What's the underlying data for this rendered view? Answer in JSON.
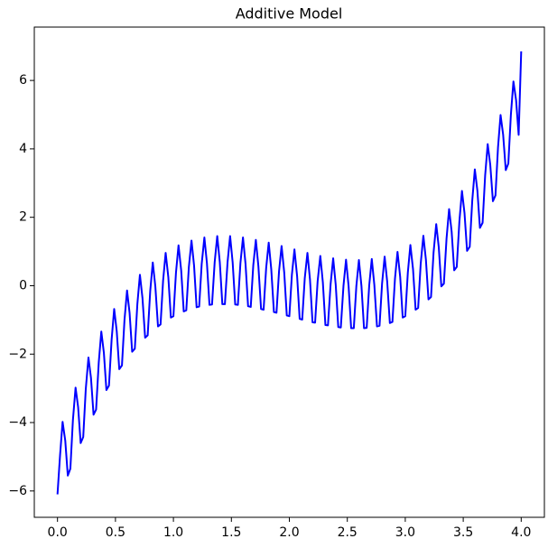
{
  "chart_data": {
    "type": "line",
    "title": "Additive Model",
    "color": "#0000ff",
    "x": [
      0,
      0.022,
      0.044,
      0.067,
      0.089,
      0.111,
      0.133,
      0.156,
      0.178,
      0.2,
      0.222,
      0.244,
      0.267,
      0.289,
      0.311,
      0.333,
      0.356,
      0.378,
      0.4,
      0.422,
      0.444,
      0.467,
      0.489,
      0.511,
      0.533,
      0.556,
      0.578,
      0.6,
      0.622,
      0.644,
      0.667,
      0.689,
      0.711,
      0.733,
      0.756,
      0.778,
      0.8,
      0.822,
      0.844,
      0.867,
      0.889,
      0.911,
      0.933,
      0.956,
      0.978,
      1.0,
      1.022,
      1.044,
      1.067,
      1.089,
      1.111,
      1.133,
      1.156,
      1.178,
      1.2,
      1.222,
      1.244,
      1.267,
      1.289,
      1.311,
      1.333,
      1.356,
      1.378,
      1.4,
      1.422,
      1.444,
      1.467,
      1.489,
      1.511,
      1.533,
      1.556,
      1.578,
      1.6,
      1.622,
      1.644,
      1.667,
      1.689,
      1.711,
      1.733,
      1.756,
      1.778,
      1.8,
      1.822,
      1.844,
      1.867,
      1.889,
      1.911,
      1.933,
      1.956,
      1.978,
      2.0,
      2.022,
      2.044,
      2.067,
      2.089,
      2.111,
      2.133,
      2.156,
      2.178,
      2.2,
      2.222,
      2.244,
      2.267,
      2.289,
      2.311,
      2.333,
      2.356,
      2.378,
      2.4,
      2.422,
      2.444,
      2.467,
      2.489,
      2.511,
      2.533,
      2.556,
      2.578,
      2.6,
      2.622,
      2.644,
      2.667,
      2.689,
      2.711,
      2.733,
      2.756,
      2.778,
      2.8,
      2.822,
      2.844,
      2.867,
      2.889,
      2.911,
      2.933,
      2.956,
      2.978,
      3.0,
      3.022,
      3.044,
      3.067,
      3.089,
      3.111,
      3.133,
      3.156,
      3.178,
      3.2,
      3.222,
      3.244,
      3.267,
      3.289,
      3.311,
      3.333,
      3.356,
      3.378,
      3.4,
      3.422,
      3.444,
      3.467,
      3.489,
      3.511,
      3.533,
      3.556,
      3.578,
      3.6,
      3.622,
      3.644,
      3.667,
      3.689,
      3.711,
      3.733,
      3.756,
      3.778,
      3.8,
      3.822,
      3.844,
      3.867,
      3.889,
      3.911,
      3.933,
      3.956,
      3.978,
      4.0
    ],
    "values": [
      -6.1,
      -4.96,
      -3.98,
      -4.53,
      -5.55,
      -5.35,
      -3.93,
      -2.98,
      -3.55,
      -4.6,
      -4.42,
      -3.02,
      -2.1,
      -2.7,
      -3.77,
      -3.62,
      -2.24,
      -1.34,
      -1.96,
      -3.05,
      -2.92,
      -1.57,
      -0.68,
      -1.33,
      -2.44,
      -2.33,
      -1.0,
      -0.14,
      -0.8,
      -1.93,
      -1.84,
      -0.53,
      0.32,
      -0.36,
      -1.52,
      -1.45,
      -0.15,
      0.68,
      -0.02,
      -1.19,
      -1.13,
      0.15,
      0.96,
      0.25,
      -0.93,
      -0.89,
      0.38,
      1.18,
      0.45,
      -0.75,
      -0.72,
      0.54,
      1.32,
      0.59,
      -0.63,
      -0.61,
      0.64,
      1.41,
      0.66,
      -0.56,
      -0.55,
      0.69,
      1.45,
      0.69,
      -0.54,
      -0.54,
      0.69,
      1.45,
      0.68,
      -0.55,
      -0.56,
      0.66,
      1.41,
      0.64,
      -0.6,
      -0.62,
      0.6,
      1.34,
      0.57,
      -0.68,
      -0.7,
      0.52,
      1.26,
      0.48,
      -0.77,
      -0.79,
      0.42,
      1.16,
      0.38,
      -0.87,
      -0.89,
      0.32,
      1.06,
      0.28,
      -0.97,
      -0.99,
      0.22,
      0.96,
      0.18,
      -1.07,
      -1.08,
      0.13,
      0.87,
      0.1,
      -1.15,
      -1.16,
      0.05,
      0.8,
      0.03,
      -1.21,
      -1.22,
      0.0,
      0.76,
      -0.01,
      -1.24,
      -1.24,
      -0.01,
      0.75,
      -0.01,
      -1.24,
      -1.23,
      0.01,
      0.78,
      0.03,
      -1.19,
      -1.17,
      0.07,
      0.85,
      0.12,
      -1.09,
      -1.06,
      0.2,
      0.99,
      0.26,
      -0.93,
      -0.89,
      0.38,
      1.19,
      0.48,
      -0.7,
      -0.65,
      0.64,
      1.46,
      0.76,
      -0.4,
      -0.33,
      0.97,
      1.8,
      1.12,
      -0.02,
      0.06,
      1.38,
      2.24,
      1.58,
      0.45,
      0.55,
      1.89,
      2.77,
      2.12,
      1.02,
      1.14,
      2.5,
      3.4,
      2.78,
      1.69,
      1.84,
      3.22,
      4.14,
      3.54,
      2.47,
      2.64,
      4.05,
      4.99,
      4.42,
      3.38,
      3.57,
      5.0,
      5.97,
      5.42,
      4.41,
      6.85
    ],
    "xlim": [
      -0.2,
      4.2
    ],
    "xticks": [
      {
        "value": 0,
        "label": "0.0"
      },
      {
        "value": 0.5,
        "label": "0.5"
      },
      {
        "value": 1,
        "label": "1.0"
      },
      {
        "value": 1.5,
        "label": "1.5"
      },
      {
        "value": 2,
        "label": "2.0"
      },
      {
        "value": 2.5,
        "label": "2.5"
      },
      {
        "value": 3,
        "label": "3.0"
      },
      {
        "value": 3.5,
        "label": "3.5"
      },
      {
        "value": 4,
        "label": "4.0"
      }
    ],
    "ylim": [
      -6.77,
      7.56
    ],
    "yticks": [
      {
        "value": -6,
        "label": "−6"
      },
      {
        "value": -4,
        "label": "−4"
      },
      {
        "value": -2,
        "label": "−2"
      },
      0,
      2,
      4,
      6
    ]
  }
}
